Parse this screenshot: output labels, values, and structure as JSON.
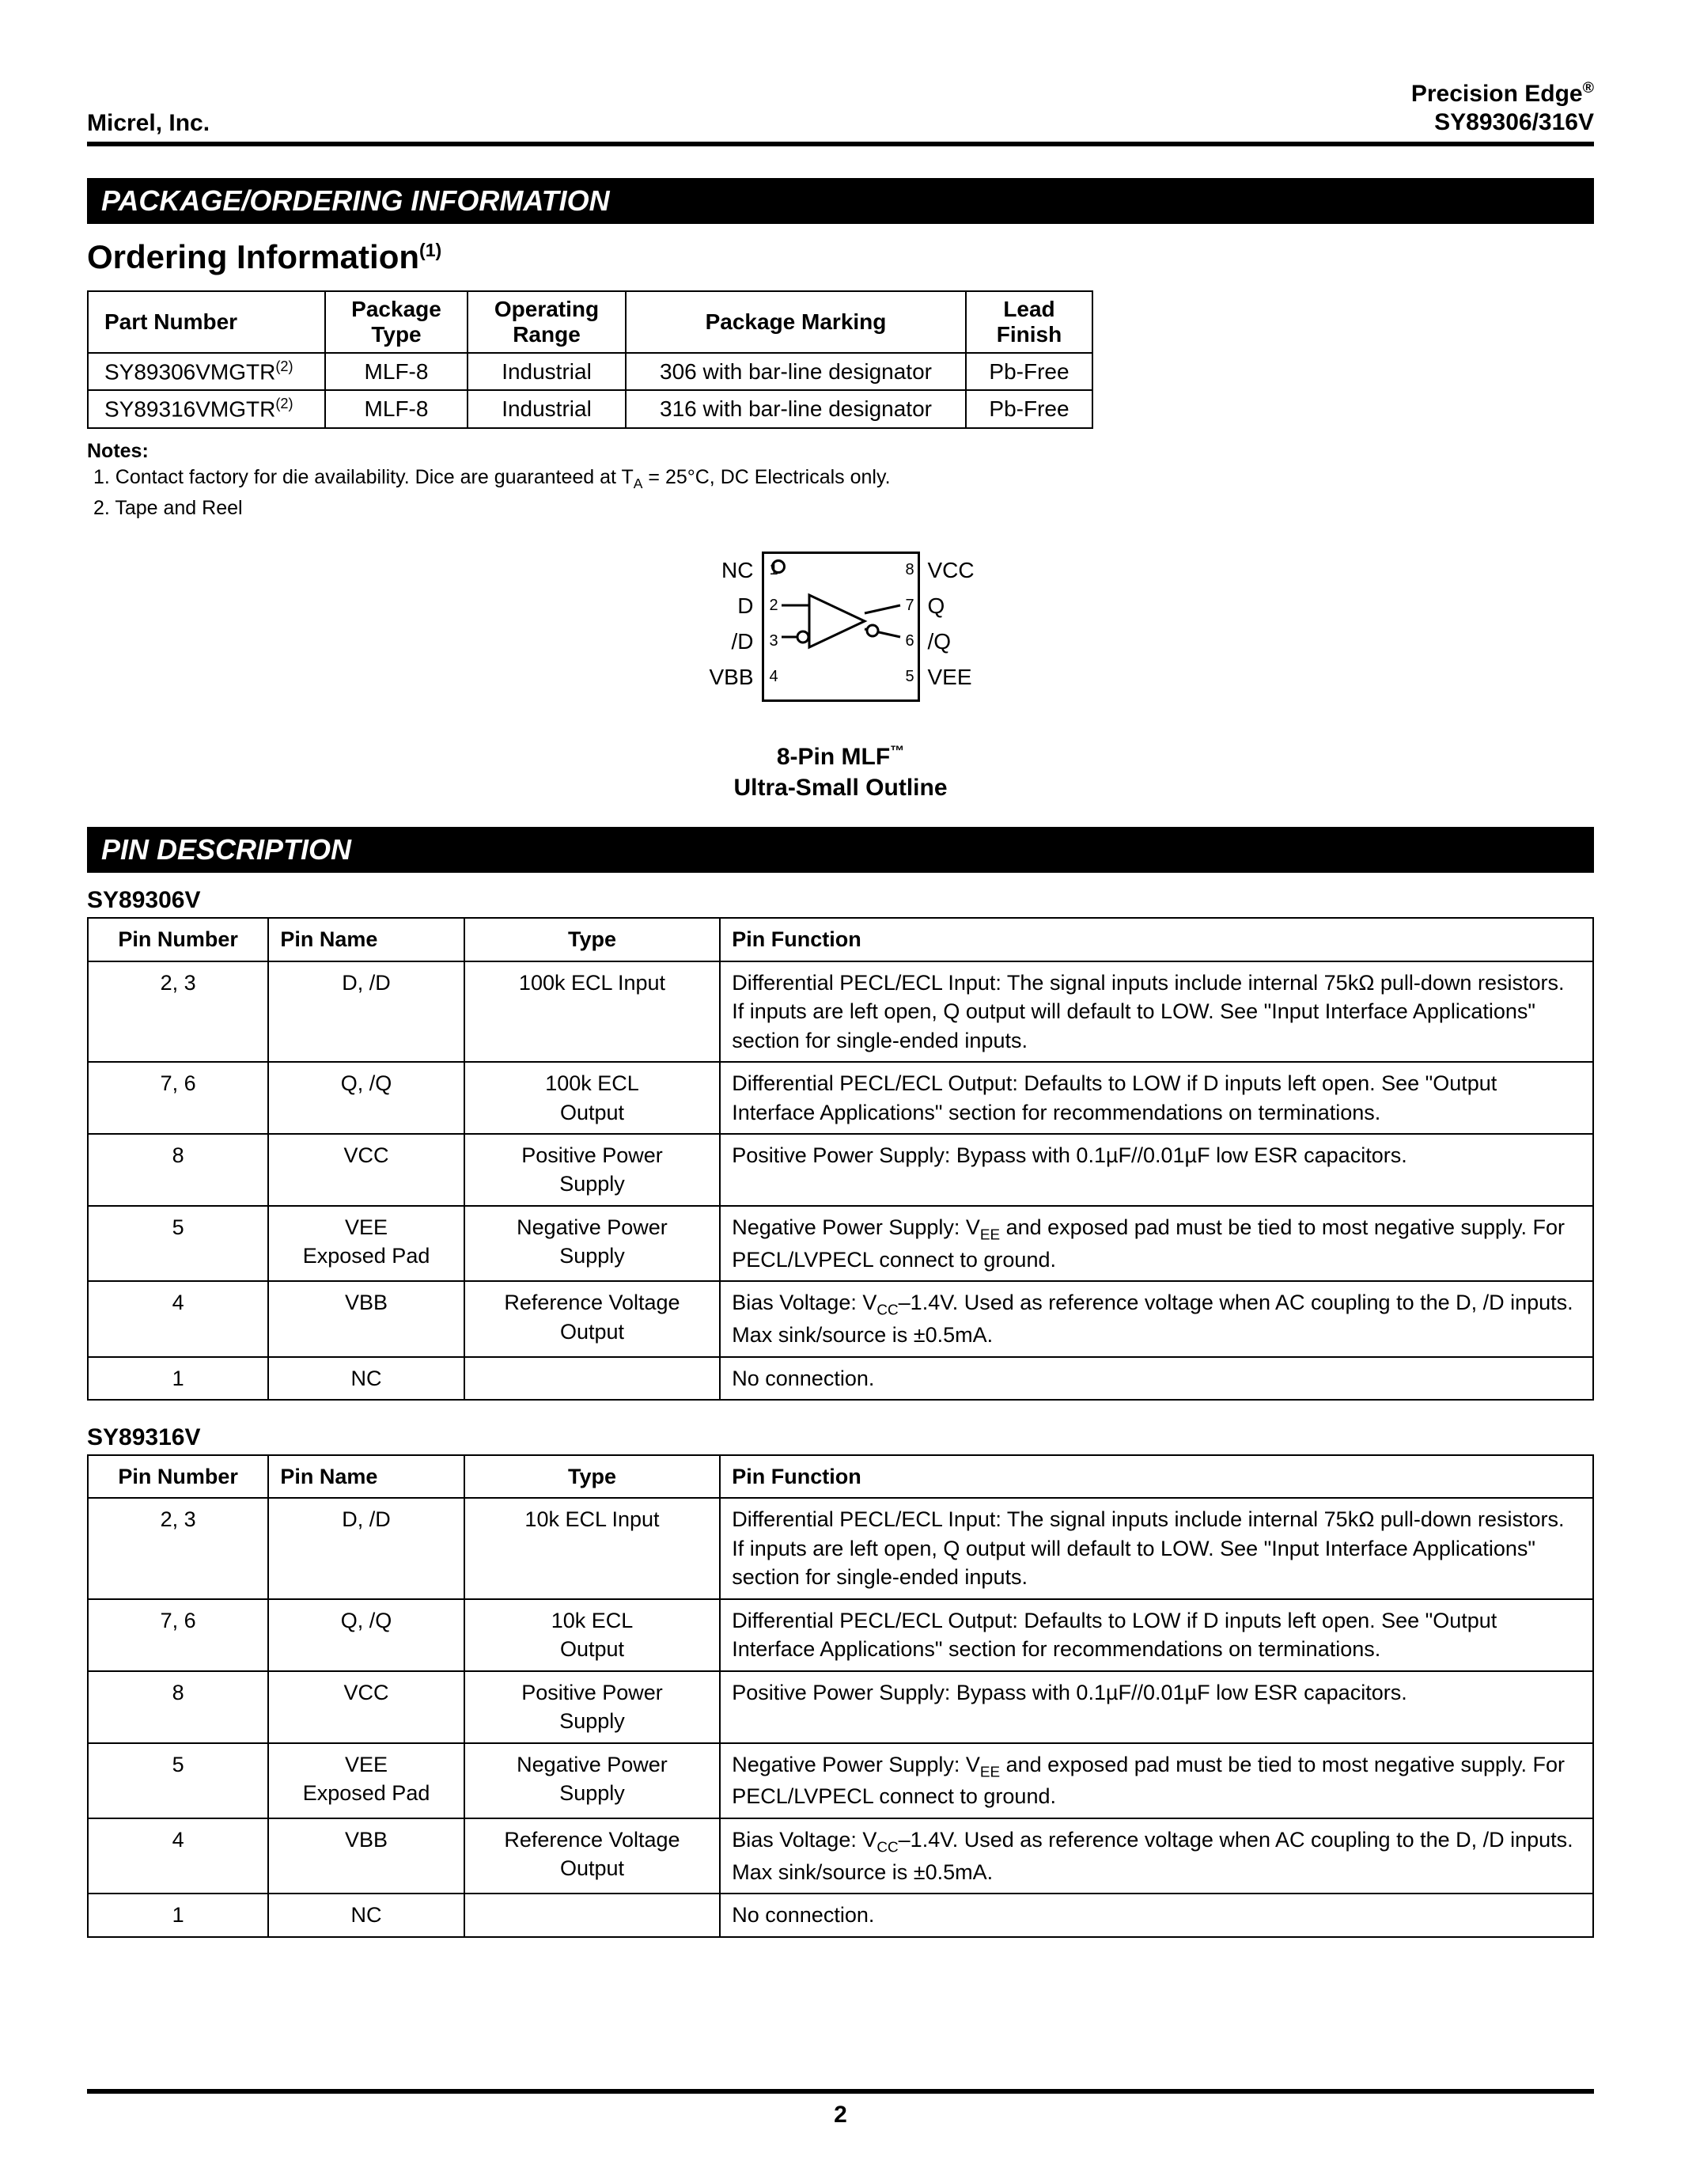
{
  "header": {
    "left": "Micrel, Inc.",
    "right1": "Precision Edge",
    "right1_sup": "®",
    "right2": "SY89306/316V"
  },
  "section1_bar": "PACKAGE/ORDERING INFORMATION",
  "ordering_title": "Ordering Information",
  "ordering_title_sup": "(1)",
  "order_table": {
    "h_part": "Part Number",
    "h_pkg": "Package Type",
    "h_range": "Operating Range",
    "h_marking": "Package Marking",
    "h_finish": "Lead Finish",
    "rows": [
      {
        "part": "SY89306VMGTR",
        "sup": "(2)",
        "pkg": "MLF-8",
        "range": "Industrial",
        "marking": "306 with bar-line designator",
        "finish": "Pb-Free"
      },
      {
        "part": "SY89316VMGTR",
        "sup": "(2)",
        "pkg": "MLF-8",
        "range": "Industrial",
        "marking": "316 with bar-line designator",
        "finish": "Pb-Free"
      }
    ]
  },
  "notes_label": "Notes:",
  "notes": [
    "1.  Contact factory for die availability. Dice are guaranteed at T",
    "2.  Tape and Reel"
  ],
  "note1_sub": "A",
  "note1_tail": " =  25°C, DC Electricals only.",
  "pins": {
    "left": [
      "NC",
      "D",
      "/D",
      "VBB"
    ],
    "right": [
      "VCC",
      "Q",
      "/Q",
      "VEE"
    ],
    "nums_left": [
      "1",
      "2",
      "3",
      "4"
    ],
    "nums_right": [
      "8",
      "7",
      "6",
      "5"
    ]
  },
  "diagram_caption1": "8-Pin MLF",
  "diagram_caption1_sup": "™",
  "diagram_caption2": "Ultra-Small Outline",
  "section2_bar": "PIN DESCRIPTION",
  "t306_title": "SY89306V",
  "t316_title": "SY89316V",
  "pin_table_headers": {
    "num": "Pin Number",
    "name": "Pin Name",
    "type": "Type",
    "func": "Pin Function"
  },
  "t306_rows": [
    {
      "num": "2, 3",
      "name": "D, /D",
      "type": "100k ECL Input",
      "func": "Differential PECL/ECL Input:  The signal inputs include internal 75kΩ pull-down resistors. If inputs are left open, Q output will default to LOW. See \"Input Interface Applications\"  section for single-ended inputs."
    },
    {
      "num": "7, 6",
      "name": "Q, /Q",
      "type": "100k ECL Output",
      "func": "Differential PECL/ECL Output:  Defaults to LOW if D inputs left open. See \"Output Interface Applications\"  section for recommendations on terminations."
    },
    {
      "num": "8",
      "name": "VCC",
      "type": "Positive Power Supply",
      "func": "Positive Power Supply:  Bypass with 0.1µF//0.01µF low ESR capacitors."
    },
    {
      "num": "5",
      "name": "VEE Exposed Pad",
      "type": "Negative Power Supply",
      "func": "Negative Power Supply:  V<sub>EE</sub> and exposed pad must be tied to most negative supply. For PECL/LVPECL connect to ground."
    },
    {
      "num": "4",
      "name": "VBB",
      "type": "Reference Voltage Output",
      "func": "Bias Voltage:  V<sub>CC</sub>–1.4V. Used as reference voltage when AC coupling to the D, /D inputs. Max sink/source is ±0.5mA."
    },
    {
      "num": "1",
      "name": "NC",
      "type": "",
      "func": "No connection."
    }
  ],
  "t316_rows": [
    {
      "num": "2, 3",
      "name": "D, /D",
      "type": "10k ECL Input",
      "func": "Differential PECL/ECL Input:  The signal inputs include internal 75kΩ pull-down resistors. If inputs are left open, Q output will default to LOW. See \"Input Interface Applications\" section for single-ended inputs."
    },
    {
      "num": "7, 6",
      "name": "Q, /Q",
      "type": "10k ECL Output",
      "func": "Differential PECL/ECL Output:  Defaults to LOW if D inputs left open. See \"Output Interface Applications\"  section for recommendations on terminations."
    },
    {
      "num": "8",
      "name": "VCC",
      "type": "Positive Power Supply",
      "func": "Positive Power Supply:  Bypass with 0.1µF//0.01µF low ESR capacitors."
    },
    {
      "num": "5",
      "name": "VEE Exposed Pad",
      "type": "Negative Power Supply",
      "func": "Negative Power Supply:  V<sub>EE</sub> and exposed pad must be tied to most negative supply. For PECL/LVPECL connect to ground."
    },
    {
      "num": "4",
      "name": "VBB",
      "type": "Reference Voltage Output",
      "func": "Bias Voltage:  V<sub>CC</sub>–1.4V. Used as reference voltage when AC coupling to the D, /D inputs. Max sink/source is ±0.5mA."
    },
    {
      "num": "1",
      "name": "NC",
      "type": "",
      "func": "No connection."
    }
  ],
  "page_num": "2",
  "col_widths": {
    "num": "12%",
    "name": "13%",
    "type": "17%",
    "func": "58%"
  }
}
